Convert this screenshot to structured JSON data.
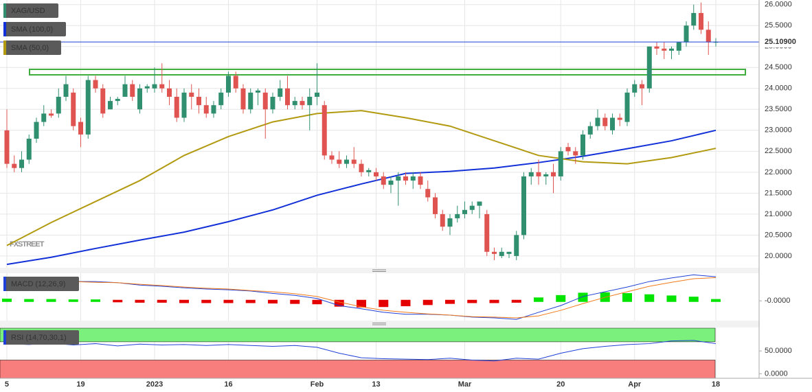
{
  "chart_data": [
    {
      "type": "candlestick",
      "name": "XAG/USD",
      "watermark": "FXSTREET",
      "up_color": "#2f8f6e",
      "down_color": "#df5450",
      "xlim": [
        -0.93,
        101.86
      ],
      "ylim": [
        19.72,
        26.11
      ],
      "xticks": [
        {
          "value": 0,
          "label": "5"
        },
        {
          "value": 10,
          "label": "19"
        },
        {
          "value": 20,
          "label": "2023"
        },
        {
          "value": 30,
          "label": "16"
        },
        {
          "value": 42,
          "label": "Feb"
        },
        {
          "value": 50,
          "label": "13"
        },
        {
          "value": 62,
          "label": "Mar"
        },
        {
          "value": 75,
          "label": "20"
        },
        {
          "value": 85,
          "label": "Apr"
        },
        {
          "value": 96,
          "label": "18"
        }
      ],
      "yticks": [
        {
          "value": 20,
          "label": "20.0000"
        },
        {
          "value": 20.5,
          "label": "20.5000"
        },
        {
          "value": 21,
          "label": "21.0000"
        },
        {
          "value": 21.5,
          "label": "21.5000"
        },
        {
          "value": 22,
          "label": "22.0000"
        },
        {
          "value": 22.5,
          "label": "22.5000"
        },
        {
          "value": 23,
          "label": "23.0000"
        },
        {
          "value": 23.5,
          "label": "23.5000"
        },
        {
          "value": 24,
          "label": "24.0000"
        },
        {
          "value": 24.5,
          "label": "24.5000"
        },
        {
          "value": 25,
          "label": "25.0000"
        },
        {
          "value": 25.5,
          "label": "25.5000"
        },
        {
          "value": 26,
          "label": "26.0000"
        }
      ],
      "grid": true,
      "last_price": {
        "value": 25.109,
        "label": "25.10900"
      },
      "ohlc": [
        [
          23.0,
          23.5,
          22.1,
          22.2
        ],
        [
          22.2,
          22.4,
          22.0,
          22.1
        ],
        [
          22.1,
          22.5,
          22.0,
          22.3
        ],
        [
          22.3,
          22.9,
          22.2,
          22.8
        ],
        [
          22.8,
          23.3,
          22.7,
          23.2
        ],
        [
          23.2,
          23.6,
          23.1,
          23.4
        ],
        [
          23.4,
          23.5,
          23.3,
          23.35
        ],
        [
          23.4,
          24.0,
          23.3,
          23.8
        ],
        [
          23.8,
          24.3,
          23.7,
          24.1
        ],
        [
          23.9,
          24.0,
          23.0,
          23.1
        ],
        [
          23.2,
          23.3,
          22.6,
          22.9
        ],
        [
          22.9,
          24.3,
          22.8,
          24.2
        ],
        [
          24.2,
          24.3,
          23.9,
          24.0
        ],
        [
          24.0,
          24.1,
          23.3,
          23.4
        ],
        [
          23.5,
          23.8,
          23.5,
          23.7
        ],
        [
          23.7,
          23.8,
          23.6,
          23.75
        ],
        [
          23.8,
          24.3,
          23.8,
          24.1
        ],
        [
          24.1,
          24.2,
          23.7,
          23.8
        ],
        [
          23.5,
          24.1,
          23.4,
          24.0
        ],
        [
          24.0,
          24.1,
          23.9,
          24.05
        ],
        [
          24.0,
          24.5,
          23.9,
          24.1
        ],
        [
          24.1,
          24.6,
          23.9,
          24.0
        ],
        [
          24.0,
          24.2,
          23.6,
          23.8
        ],
        [
          23.8,
          24.0,
          23.2,
          23.3
        ],
        [
          23.3,
          24.0,
          23.2,
          23.9
        ],
        [
          23.9,
          24.1,
          23.5,
          23.8
        ],
        [
          23.8,
          24.0,
          23.4,
          23.6
        ],
        [
          23.6,
          23.8,
          23.3,
          23.4
        ],
        [
          23.4,
          23.7,
          23.3,
          23.6
        ],
        [
          23.6,
          24.0,
          23.5,
          23.9
        ],
        [
          23.9,
          24.4,
          23.8,
          24.3
        ],
        [
          24.3,
          24.4,
          23.9,
          24.0
        ],
        [
          24.0,
          24.1,
          23.4,
          23.5
        ],
        [
          23.5,
          24.0,
          23.4,
          23.9
        ],
        [
          23.9,
          24.0,
          23.6,
          23.95
        ],
        [
          23.9,
          24.0,
          22.8,
          23.5
        ],
        [
          23.5,
          23.9,
          23.4,
          23.8
        ],
        [
          23.8,
          24.2,
          23.7,
          24.0
        ],
        [
          24.0,
          24.3,
          23.5,
          23.6
        ],
        [
          23.6,
          23.8,
          23.5,
          23.7
        ],
        [
          23.7,
          23.8,
          23.5,
          23.6
        ],
        [
          23.6,
          24.0,
          23.0,
          23.8
        ],
        [
          23.8,
          24.6,
          23.6,
          23.9
        ],
        [
          23.6,
          23.7,
          22.3,
          22.4
        ],
        [
          22.4,
          22.5,
          22.2,
          22.3
        ],
        [
          22.3,
          22.5,
          22.1,
          22.2
        ],
        [
          22.2,
          22.4,
          22.1,
          22.3
        ],
        [
          22.3,
          22.6,
          22.1,
          22.2
        ],
        [
          22.2,
          22.3,
          21.9,
          22.0
        ],
        [
          22.0,
          22.1,
          21.9,
          22.05
        ],
        [
          22.0,
          22.1,
          21.8,
          21.9
        ],
        [
          21.9,
          22.0,
          21.6,
          21.7
        ],
        [
          21.7,
          21.9,
          21.5,
          21.8
        ],
        [
          21.8,
          22.0,
          21.2,
          21.9
        ],
        [
          21.9,
          22.0,
          21.7,
          21.8
        ],
        [
          21.8,
          22.0,
          21.6,
          21.9
        ],
        [
          21.9,
          22.0,
          21.6,
          21.7
        ],
        [
          21.6,
          21.8,
          21.3,
          21.4
        ],
        [
          21.4,
          21.5,
          20.9,
          21.0
        ],
        [
          21.0,
          21.1,
          20.6,
          20.7
        ],
        [
          20.7,
          21.0,
          20.5,
          20.9
        ],
        [
          20.9,
          21.2,
          20.8,
          21.0
        ],
        [
          21.0,
          21.3,
          20.9,
          21.1
        ],
        [
          21.1,
          21.3,
          21.0,
          21.2
        ],
        [
          21.2,
          21.3,
          20.9,
          21.3
        ],
        [
          21.0,
          21.1,
          20.0,
          20.1
        ],
        [
          20.1,
          20.2,
          19.9,
          20.05
        ],
        [
          20.0,
          20.2,
          19.95,
          20.1
        ],
        [
          20.05,
          20.1,
          19.95,
          20.1
        ],
        [
          20.0,
          20.6,
          19.9,
          20.5
        ],
        [
          20.5,
          22.0,
          20.4,
          21.9
        ],
        [
          21.9,
          22.1,
          21.7,
          22.0
        ],
        [
          22.0,
          22.3,
          21.7,
          21.9
        ],
        [
          21.9,
          22.0,
          21.7,
          21.95
        ],
        [
          22.0,
          22.2,
          21.5,
          21.9
        ],
        [
          21.9,
          22.6,
          21.8,
          22.5
        ],
        [
          22.6,
          22.7,
          22.4,
          22.5
        ],
        [
          22.5,
          22.6,
          22.2,
          22.4
        ],
        [
          22.4,
          23.0,
          22.3,
          22.9
        ],
        [
          22.9,
          23.2,
          22.8,
          23.1
        ],
        [
          23.1,
          23.5,
          23.0,
          23.3
        ],
        [
          23.3,
          23.4,
          23.0,
          23.1
        ],
        [
          23.0,
          23.4,
          22.9,
          23.3
        ],
        [
          23.3,
          23.4,
          23.1,
          23.25
        ],
        [
          23.2,
          24.0,
          23.1,
          23.9
        ],
        [
          23.9,
          24.2,
          23.8,
          24.1
        ],
        [
          24.1,
          24.2,
          23.6,
          24.0
        ],
        [
          24.0,
          25.0,
          23.9,
          25.0
        ],
        [
          25.0,
          25.1,
          24.8,
          24.95
        ],
        [
          24.95,
          25.1,
          24.7,
          24.9
        ],
        [
          24.9,
          25.0,
          24.7,
          24.95
        ],
        [
          24.9,
          25.1,
          24.8,
          25.1
        ],
        [
          25.1,
          25.6,
          25.0,
          25.5
        ],
        [
          25.5,
          26.0,
          25.4,
          25.8
        ],
        [
          25.8,
          26.05,
          25.3,
          25.4
        ],
        [
          25.4,
          25.6,
          24.8,
          25.1
        ],
        [
          25.1,
          25.2,
          25.0,
          25.109
        ]
      ],
      "series": [
        {
          "name": "SMA (100,0)",
          "color": "#1230d8",
          "x": [
            0,
            6,
            12,
            18,
            24,
            30,
            36,
            42,
            48,
            54,
            60,
            66,
            72,
            78,
            84,
            90,
            96
          ],
          "values": [
            19.8,
            19.97,
            20.18,
            20.38,
            20.57,
            20.82,
            21.1,
            21.45,
            21.72,
            21.97,
            22.02,
            22.1,
            22.23,
            22.38,
            22.56,
            22.75,
            23.0
          ]
        },
        {
          "name": "SMA (50,0)",
          "color": "#b29a10",
          "x": [
            0,
            6,
            12,
            18,
            24,
            30,
            36,
            42,
            48,
            54,
            60,
            66,
            72,
            78,
            84,
            90,
            96
          ],
          "values": [
            20.25,
            20.8,
            21.3,
            21.8,
            22.4,
            22.85,
            23.2,
            23.4,
            23.47,
            23.3,
            23.1,
            22.75,
            22.4,
            22.25,
            22.2,
            22.35,
            22.57
          ]
        }
      ]
    },
    {
      "type": "macd",
      "name": "MACD (12,26,9)",
      "ylim": [
        -0.5,
        0.7
      ],
      "yticks": [
        {
          "value": 0,
          "label": "-0.0000"
        }
      ],
      "x": [
        0,
        3,
        6,
        9,
        12,
        15,
        18,
        21,
        24,
        27,
        30,
        33,
        36,
        39,
        42,
        45,
        48,
        51,
        54,
        57,
        60,
        63,
        66,
        69,
        72,
        75,
        78,
        81,
        84,
        87,
        90,
        93,
        96
      ],
      "series": [
        {
          "color": "#1f3fd6",
          "values": [
            0.58,
            0.49,
            0.52,
            0.49,
            0.49,
            0.46,
            0.4,
            0.37,
            0.33,
            0.3,
            0.28,
            0.25,
            0.19,
            0.14,
            0.06,
            -0.12,
            -0.2,
            -0.29,
            -0.34,
            -0.34,
            -0.36,
            -0.41,
            -0.43,
            -0.47,
            -0.29,
            -0.12,
            0.11,
            0.23,
            0.35,
            0.49,
            0.58,
            0.66,
            0.61
          ]
        },
        {
          "color": "#f07a1a",
          "values": [
            0.54,
            0.53,
            0.51,
            0.49,
            0.47,
            0.46,
            0.42,
            0.39,
            0.35,
            0.32,
            0.3,
            0.26,
            0.23,
            0.18,
            0.11,
            -0.03,
            -0.15,
            -0.24,
            -0.29,
            -0.33,
            -0.36,
            -0.4,
            -0.41,
            -0.43,
            -0.38,
            -0.24,
            -0.07,
            0.09,
            0.23,
            0.37,
            0.47,
            0.56,
            0.59
          ]
        }
      ],
      "histogram": {
        "up_color": "#00e400",
        "down_color": "#e40000",
        "values": [
          0.03,
          0.02,
          0.02,
          0.01,
          0.01,
          -0.01,
          -0.02,
          -0.02,
          -0.03,
          -0.03,
          -0.03,
          -0.03,
          -0.04,
          -0.05,
          -0.06,
          -0.12,
          -0.14,
          -0.13,
          -0.11,
          -0.08,
          -0.05,
          -0.03,
          -0.03,
          -0.02,
          0.06,
          0.12,
          0.18,
          0.19,
          0.17,
          0.14,
          0.11,
          0.08,
          0.02
        ]
      }
    },
    {
      "type": "rsi",
      "name": "RSI (14,70,30,1)",
      "ylim": [
        -10,
        100
      ],
      "overbought": 70,
      "oversold": 30,
      "band_colors": [
        "#7cf07c",
        "#f87e7e"
      ],
      "color": "#1f3fd6",
      "yticks": [
        {
          "value": 50,
          "label": "50.0000"
        },
        {
          "value": 0,
          "label": "0.0000"
        }
      ],
      "x": [
        0,
        3,
        6,
        9,
        12,
        15,
        18,
        21,
        24,
        27,
        30,
        33,
        36,
        39,
        42,
        45,
        48,
        51,
        54,
        57,
        60,
        63,
        66,
        69,
        72,
        75,
        78,
        81,
        84,
        87,
        90,
        93,
        96
      ],
      "values": [
        66,
        64,
        67,
        63,
        66,
        61,
        65,
        63,
        64,
        62,
        64,
        62,
        60,
        62,
        58,
        45,
        35,
        33,
        32,
        31,
        34,
        30,
        28,
        34,
        32,
        45,
        55,
        60,
        64,
        66,
        72,
        73,
        66
      ]
    }
  ]
}
